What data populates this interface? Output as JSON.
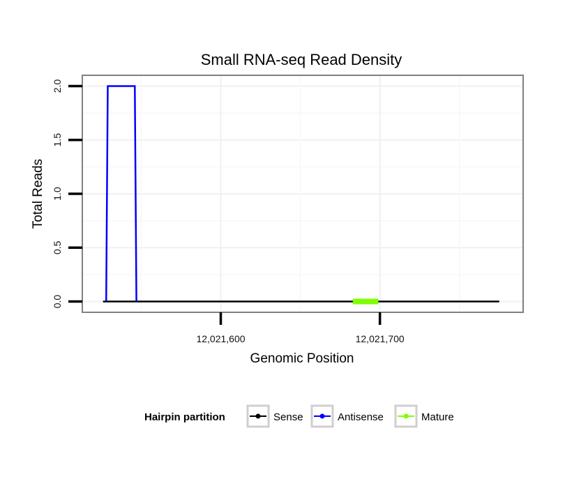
{
  "chart_data": {
    "type": "line",
    "title": "Small RNA-seq Read Density",
    "xlabel": "Genomic Position",
    "ylabel": "Total Reads",
    "xlim": [
      12021513,
      12021790
    ],
    "ylim": [
      -0.1,
      2.1
    ],
    "x_ticks": [
      12021600,
      12021700
    ],
    "x_tick_labels": [
      "12,021,600",
      "12,021,700"
    ],
    "y_ticks": [
      0.0,
      0.5,
      1.0,
      1.5,
      2.0
    ],
    "y_tick_labels": [
      "0.0",
      "0.5",
      "1.0",
      "1.5",
      "2.0"
    ],
    "grid": true,
    "series": [
      {
        "name": "Sense",
        "color": "#000000",
        "x": [
          12021526,
          12021775
        ],
        "values": [
          0,
          0
        ]
      },
      {
        "name": "Antisense",
        "color": "#0000ff",
        "x": [
          12021528,
          12021529,
          12021546,
          12021547
        ],
        "values": [
          0,
          2,
          2,
          0
        ]
      },
      {
        "name": "Mature",
        "color": "#7fff00",
        "x": [
          12021683,
          12021699
        ],
        "values": [
          0,
          0
        ]
      }
    ],
    "legend": {
      "title": "Hairpin partition",
      "placement": "bottom",
      "entries": [
        "Sense",
        "Antisense",
        "Mature"
      ]
    }
  }
}
